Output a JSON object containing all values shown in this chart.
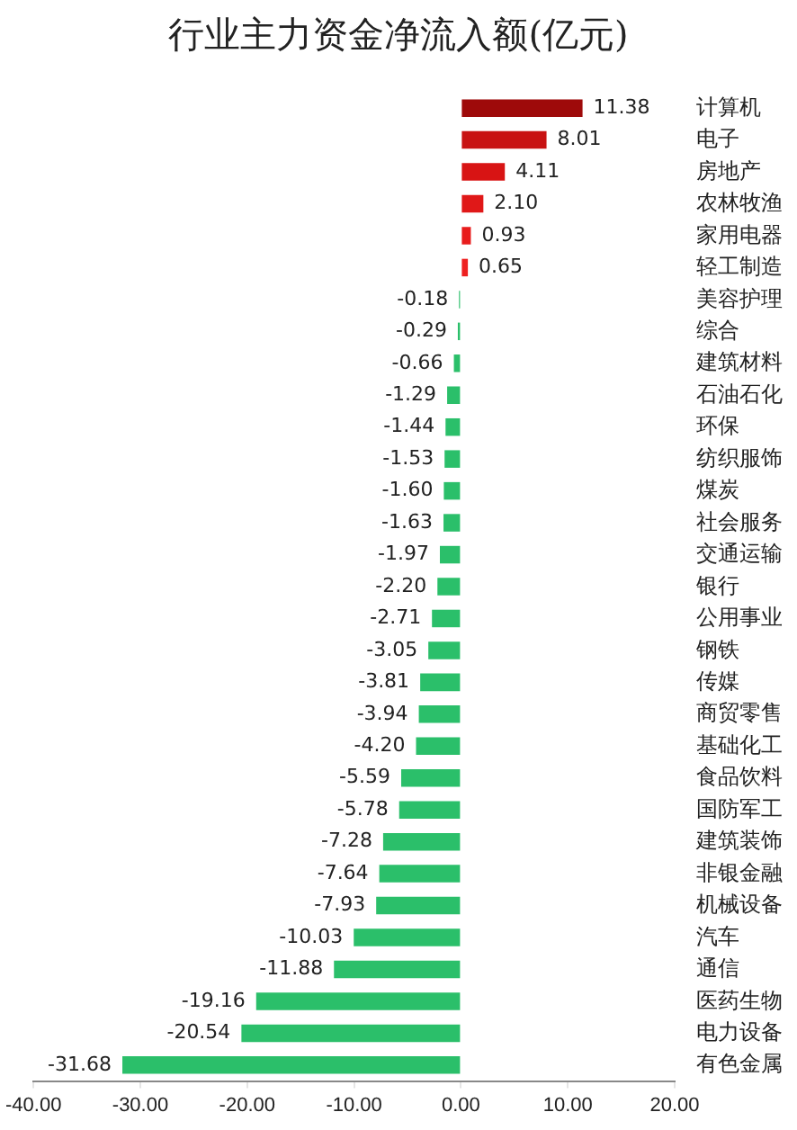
{
  "chart_data": {
    "type": "bar",
    "orientation": "horizontal",
    "title": "行业主力资金净流入额(亿元)",
    "categories": [
      "计算机",
      "电子",
      "房地产",
      "农林牧渔",
      "家用电器",
      "轻工制造",
      "美容护理",
      "综合",
      "建筑材料",
      "石油石化",
      "环保",
      "纺织服饰",
      "煤炭",
      "社会服务",
      "交通运输",
      "银行",
      "公用事业",
      "钢铁",
      "传媒",
      "商贸零售",
      "基础化工",
      "食品饮料",
      "国防军工",
      "建筑装饰",
      "非银金融",
      "机械设备",
      "汽车",
      "通信",
      "医药生物",
      "电力设备",
      "有色金属"
    ],
    "values": [
      11.38,
      8.01,
      4.11,
      2.1,
      0.93,
      0.65,
      -0.18,
      -0.29,
      -0.66,
      -1.29,
      -1.44,
      -1.53,
      -1.6,
      -1.63,
      -1.97,
      -2.2,
      -2.71,
      -3.05,
      -3.81,
      -3.94,
      -4.2,
      -5.59,
      -5.78,
      -7.28,
      -7.64,
      -7.93,
      -10.03,
      -11.88,
      -19.16,
      -20.54,
      -31.68
    ],
    "value_labels": [
      "11.38",
      "8.01",
      "4.11",
      "2.10",
      "0.93",
      "0.65",
      "-0.18",
      "-0.29",
      "-0.66",
      "-1.29",
      "-1.44",
      "-1.53",
      "-1.60",
      "-1.63",
      "-1.97",
      "-2.20",
      "-2.71",
      "-3.05",
      "-3.81",
      "-3.94",
      "-4.20",
      "-5.59",
      "-5.78",
      "-7.28",
      "-7.64",
      "-7.93",
      "-10.03",
      "-11.88",
      "-19.16",
      "-20.54",
      "-31.68"
    ],
    "colors": [
      "#9e0a0a",
      "#c81212",
      "#d81414",
      "#e01818",
      "#e81c1c",
      "#ee2020",
      "#2bbf6a",
      "#2bbf6a",
      "#2bbf6a",
      "#2bbf6a",
      "#2bbf6a",
      "#2bbf6a",
      "#2bbf6a",
      "#2bbf6a",
      "#2bbf6a",
      "#2bbf6a",
      "#2bbf6a",
      "#2bbf6a",
      "#2bbf6a",
      "#2bbf6a",
      "#2bbf6a",
      "#2bbf6a",
      "#2bbf6a",
      "#2bbf6a",
      "#2bbf6a",
      "#2bbf6a",
      "#2bbf6a",
      "#2bbf6a",
      "#2bbf6a",
      "#2bbf6a",
      "#2bbf6a"
    ],
    "xlim": [
      -40,
      20
    ],
    "xticks": [
      {
        "value": -40,
        "label": "-40.00"
      },
      {
        "value": -30,
        "label": "-30.00"
      },
      {
        "value": -20,
        "label": "-20.00"
      },
      {
        "value": -10,
        "label": "-10.00"
      },
      {
        "value": 0,
        "label": "0.00"
      },
      {
        "value": 10,
        "label": "10.00"
      },
      {
        "value": 20,
        "label": "20.00"
      }
    ],
    "grid": false,
    "legend": false
  }
}
